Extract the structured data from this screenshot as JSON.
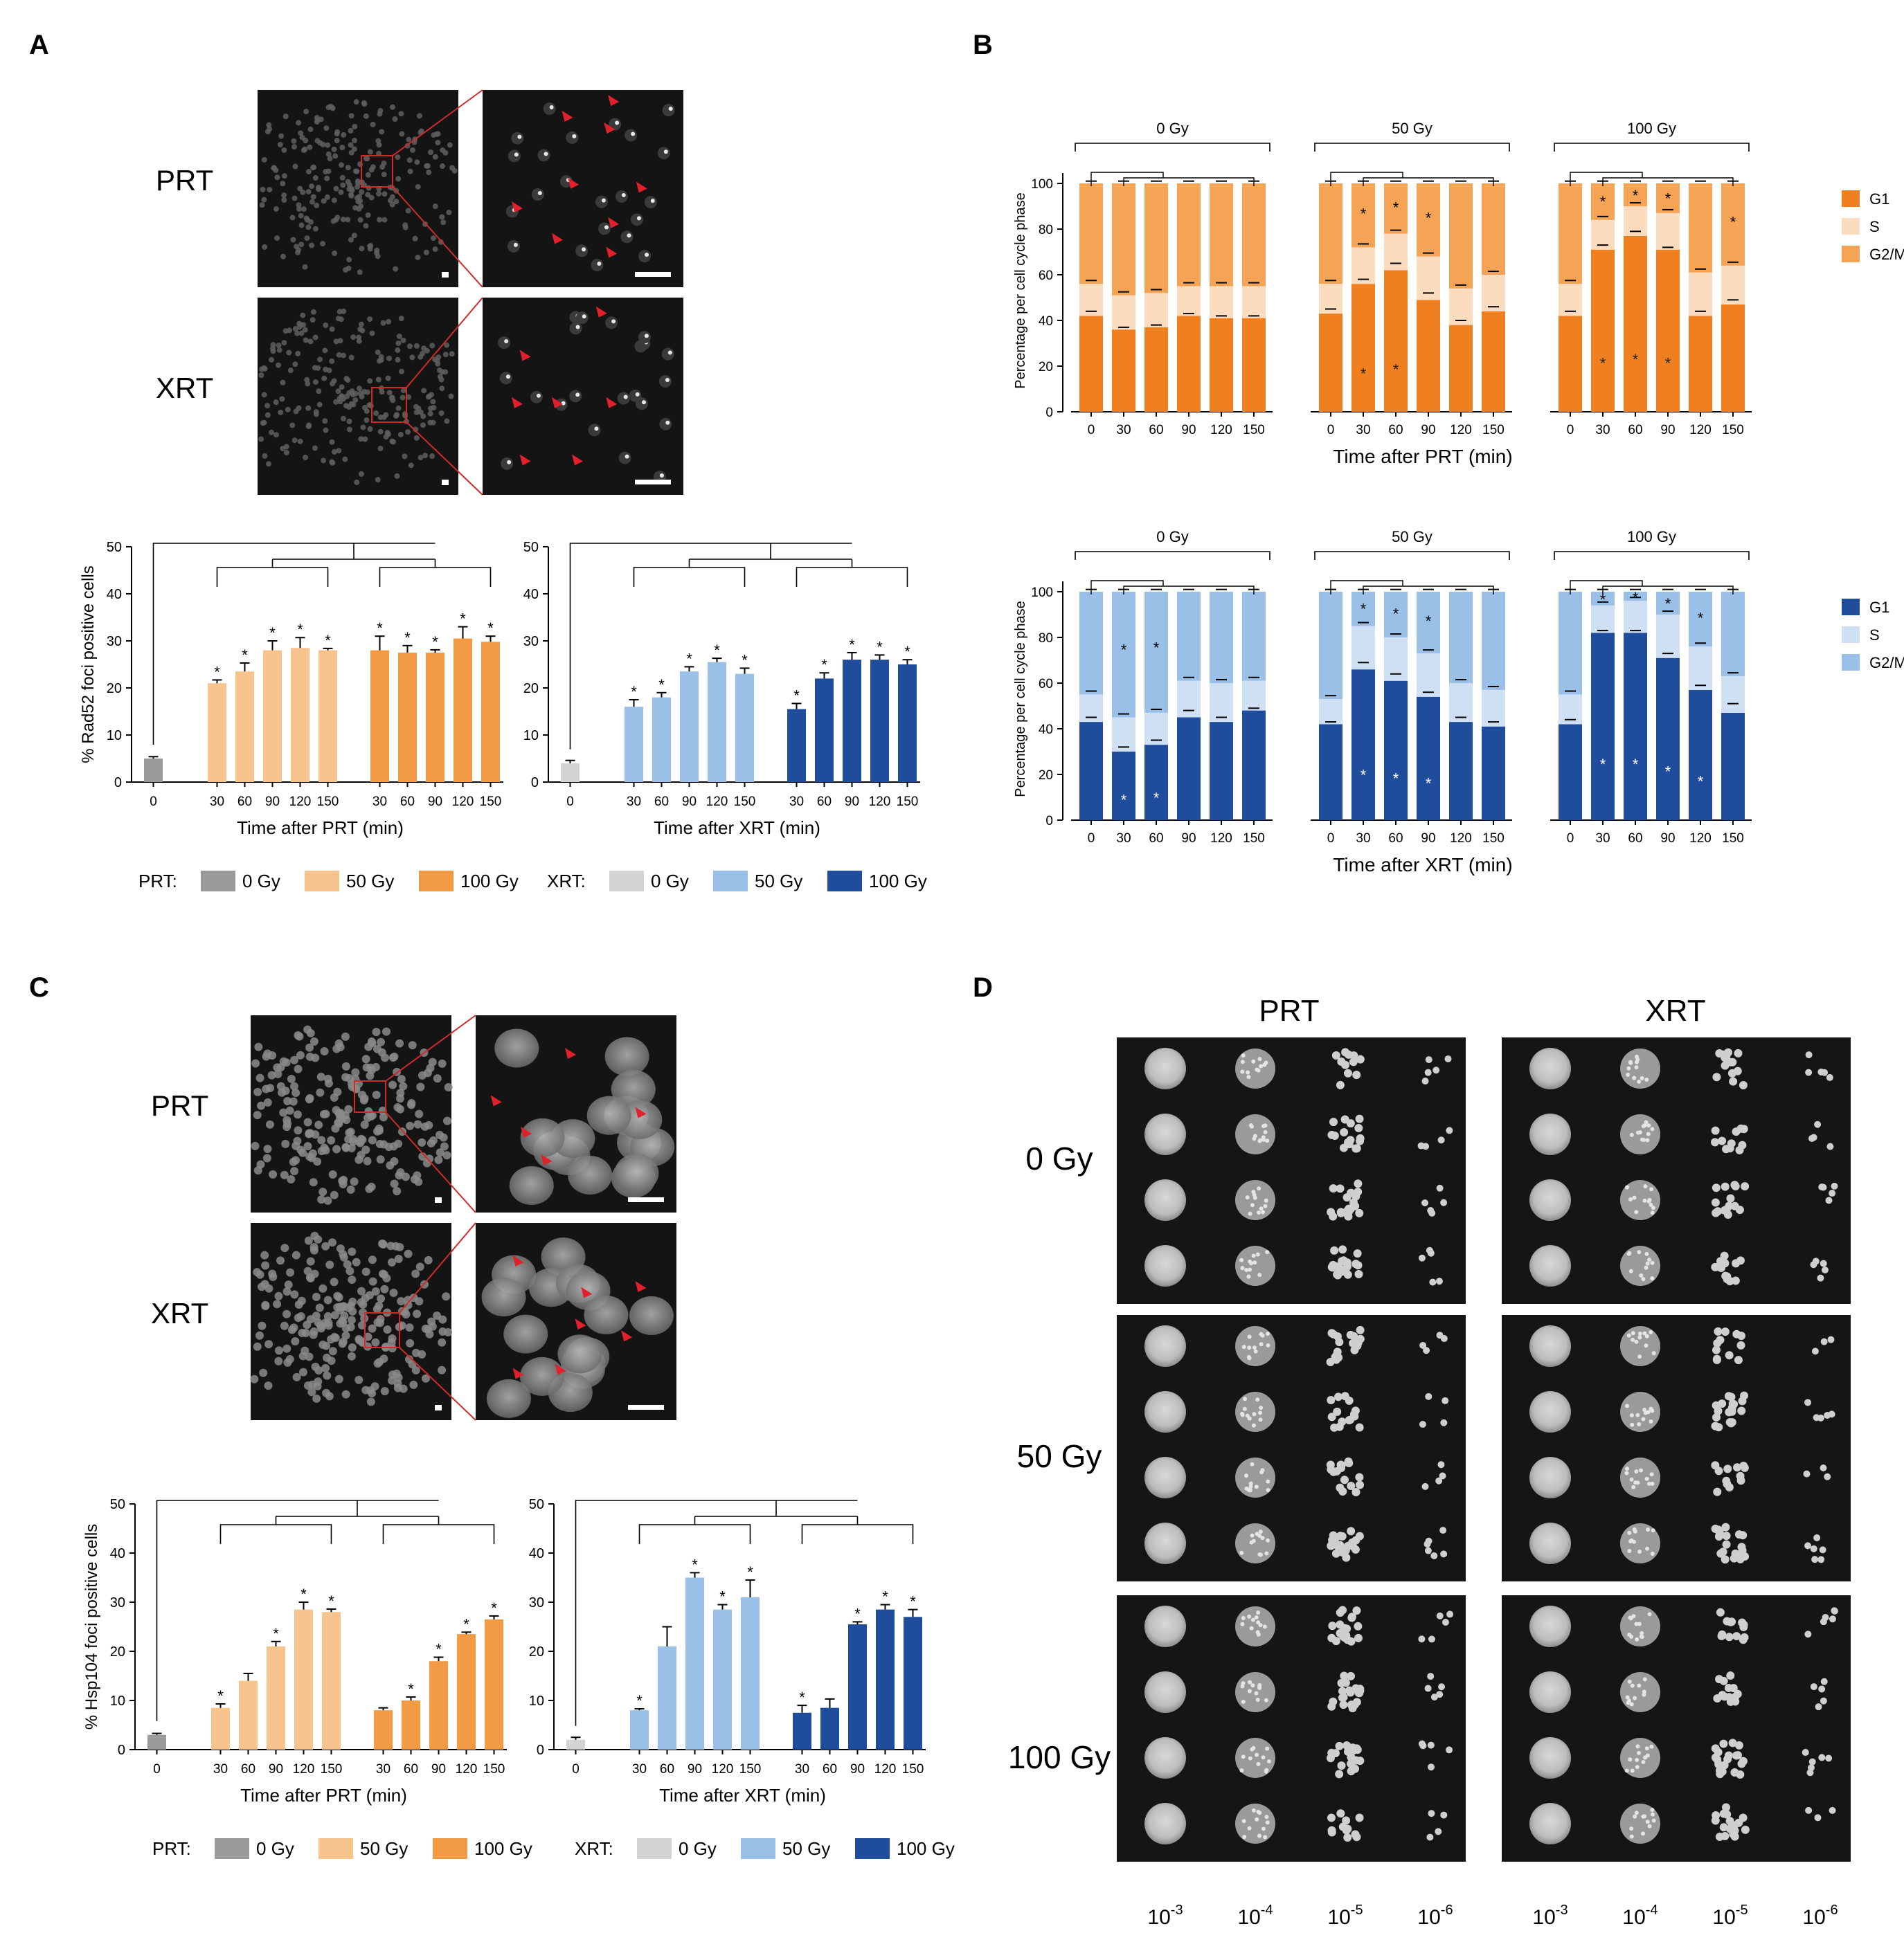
{
  "panels": {
    "A": "A",
    "B": "B",
    "C": "C",
    "D": "D"
  },
  "colors": {
    "prt0": "#9b9b9b",
    "prt50": "#f8c48e",
    "prt100": "#f39a45",
    "xrt0": "#d3d3d3",
    "xrt50": "#9ac0e8",
    "xrt100": "#1f4d9c",
    "g1_prt": "#f07f1f",
    "s_prt": "#fbdcbf",
    "g2_prt": "#f5a355",
    "g1_xrt": "#1f4d9c",
    "s_xrt": "#cfe0f5",
    "g2_xrt": "#9ac0e8",
    "arrow": "#e0202a"
  },
  "labels": {
    "prt": "PRT",
    "xrt": "XRT"
  },
  "legends": {
    "prt": {
      "title": "PRT:",
      "items": [
        "0 Gy",
        "50 Gy",
        "100 Gy"
      ]
    },
    "xrt": {
      "title": "XRT:",
      "items": [
        "0 Gy",
        "50 Gy",
        "100 Gy"
      ]
    },
    "phase": [
      "G1",
      "S",
      "G2/M"
    ]
  },
  "doses": [
    "0 Gy",
    "50 Gy",
    "100 Gy"
  ],
  "chart_data": [
    {
      "id": "A-prt",
      "type": "bar",
      "title": "",
      "ylabel": "% Rad52 foci positive cells",
      "xlabel": "Time after PRT (min)",
      "ylim": [
        0,
        50
      ],
      "yticks": [
        0,
        10,
        20,
        30,
        40,
        50
      ],
      "groups": [
        {
          "name": "0 Gy",
          "x": [
            "0"
          ],
          "values": [
            5
          ],
          "err": [
            0.4
          ]
        },
        {
          "name": "50 Gy",
          "x": [
            "30",
            "60",
            "90",
            "120",
            "150"
          ],
          "values": [
            21,
            23.5,
            28,
            28.5,
            28
          ],
          "err": [
            0.7,
            1.8,
            2,
            2.2,
            0.4
          ]
        },
        {
          "name": "100 Gy",
          "x": [
            "30",
            "60",
            "90",
            "120",
            "150"
          ],
          "values": [
            28,
            27.5,
            27.5,
            30.5,
            29.8
          ],
          "err": [
            3,
            1.5,
            0.6,
            2.5,
            1.2
          ]
        }
      ],
      "significance": [
        [
          false
        ],
        [
          true,
          true,
          true,
          true,
          true
        ],
        [
          true,
          true,
          true,
          true,
          true
        ]
      ]
    },
    {
      "id": "A-xrt",
      "type": "bar",
      "title": "",
      "ylabel": "",
      "xlabel": "Time after XRT (min)",
      "ylim": [
        0,
        50
      ],
      "yticks": [
        0,
        10,
        20,
        30,
        40,
        50
      ],
      "groups": [
        {
          "name": "0 Gy",
          "x": [
            "0"
          ],
          "values": [
            4
          ],
          "err": [
            0.6
          ]
        },
        {
          "name": "50 Gy",
          "x": [
            "30",
            "60",
            "90",
            "120",
            "150"
          ],
          "values": [
            16,
            18,
            23.5,
            25.5,
            23
          ],
          "err": [
            1.5,
            1,
            1,
            0.8,
            1.2
          ]
        },
        {
          "name": "100 Gy",
          "x": [
            "30",
            "60",
            "90",
            "120",
            "150"
          ],
          "values": [
            15.5,
            22,
            26,
            26,
            25
          ],
          "err": [
            1.2,
            1.2,
            1.5,
            1,
            1
          ]
        }
      ],
      "significance": [
        [
          false
        ],
        [
          true,
          true,
          true,
          true,
          true
        ],
        [
          true,
          true,
          true,
          true,
          true
        ]
      ]
    },
    {
      "id": "B-prt",
      "type": "stacked-bar",
      "ylabel": "Percentage per cell cycle phase",
      "xlabel": "Time after PRT (min)",
      "ylim": [
        0,
        100
      ],
      "yticks": [
        0,
        20,
        40,
        60,
        80,
        100
      ],
      "series": [
        "G1",
        "S",
        "G2/M"
      ],
      "groups": [
        {
          "name": "0 Gy",
          "x": [
            "0",
            "30",
            "60",
            "90",
            "120",
            "150"
          ],
          "G1": [
            42,
            36,
            37,
            42,
            41,
            41
          ],
          "S": [
            14,
            15,
            15,
            13,
            14,
            14
          ]
        },
        {
          "name": "50 Gy",
          "x": [
            "0",
            "30",
            "60",
            "90",
            "120",
            "150"
          ],
          "G1": [
            43,
            56,
            62,
            49,
            38,
            44
          ],
          "S": [
            13,
            16,
            16,
            19,
            16,
            16
          ]
        },
        {
          "name": "100 Gy",
          "x": [
            "0",
            "30",
            "60",
            "90",
            "120",
            "150"
          ],
          "G1": [
            42,
            71,
            77,
            71,
            42,
            47
          ],
          "S": [
            14,
            13,
            13,
            16,
            19,
            17
          ]
        }
      ],
      "g1_err": [
        [
          2,
          1,
          1,
          1,
          1,
          1
        ],
        [
          2,
          2,
          3,
          3,
          2,
          2
        ],
        [
          2,
          2,
          2,
          1,
          2,
          2
        ]
      ],
      "g1_star": [
        [
          false,
          false,
          false,
          false,
          false,
          false
        ],
        [
          false,
          true,
          true,
          false,
          false,
          false
        ],
        [
          false,
          true,
          true,
          true,
          false,
          false
        ]
      ],
      "top_star": [
        [
          false,
          false,
          false,
          false,
          false,
          false
        ],
        [
          false,
          true,
          true,
          true,
          false,
          false
        ],
        [
          false,
          true,
          true,
          true,
          false,
          true
        ]
      ]
    },
    {
      "id": "B-xrt",
      "type": "stacked-bar",
      "ylabel": "Percentage per cell cycle phase",
      "xlabel": "Time after XRT (min)",
      "ylim": [
        0,
        100
      ],
      "yticks": [
        0,
        20,
        40,
        60,
        80,
        100
      ],
      "series": [
        "G1",
        "S",
        "G2/M"
      ],
      "groups": [
        {
          "name": "0 Gy",
          "x": [
            "0",
            "30",
            "60",
            "90",
            "120",
            "150"
          ],
          "G1": [
            43,
            30,
            33,
            45,
            43,
            48
          ],
          "S": [
            12,
            15,
            14,
            16,
            17,
            13
          ]
        },
        {
          "name": "50 Gy",
          "x": [
            "0",
            "30",
            "60",
            "90",
            "120",
            "150"
          ],
          "G1": [
            42,
            66,
            61,
            54,
            43,
            41
          ],
          "S": [
            11,
            19,
            19,
            19,
            17,
            16
          ]
        },
        {
          "name": "100 Gy",
          "x": [
            "0",
            "30",
            "60",
            "90",
            "120",
            "150"
          ],
          "G1": [
            42,
            82,
            82,
            71,
            57,
            47
          ],
          "S": [
            13,
            12,
            14,
            19,
            19,
            16
          ]
        }
      ],
      "g1_err": [
        [
          2,
          2,
          2,
          3,
          2,
          1
        ],
        [
          1,
          3,
          3,
          2,
          2,
          2
        ],
        [
          2,
          1,
          1,
          2,
          2,
          4
        ]
      ],
      "g1_star": [
        [
          false,
          true,
          true,
          false,
          false,
          false
        ],
        [
          false,
          true,
          true,
          true,
          false,
          false
        ],
        [
          false,
          true,
          true,
          true,
          true,
          false
        ]
      ],
      "top_star": [
        [
          false,
          true,
          true,
          false,
          false,
          false
        ],
        [
          false,
          true,
          true,
          true,
          false,
          false
        ],
        [
          false,
          true,
          true,
          true,
          true,
          false
        ]
      ]
    },
    {
      "id": "C-prt",
      "type": "bar",
      "title": "",
      "ylabel": "% Hsp104 foci positive cells",
      "xlabel": "Time after PRT (min)",
      "ylim": [
        0,
        50
      ],
      "yticks": [
        0,
        10,
        20,
        30,
        40,
        50
      ],
      "groups": [
        {
          "name": "0 Gy",
          "x": [
            "0"
          ],
          "values": [
            3
          ],
          "err": [
            0.3
          ]
        },
        {
          "name": "50 Gy",
          "x": [
            "30",
            "60",
            "90",
            "120",
            "150"
          ],
          "values": [
            8.5,
            14,
            21,
            28.5,
            28
          ],
          "err": [
            0.8,
            1.5,
            1,
            1.5,
            0.6
          ]
        },
        {
          "name": "100 Gy",
          "x": [
            "30",
            "60",
            "90",
            "120",
            "150"
          ],
          "values": [
            8,
            10,
            18,
            23.5,
            26.5
          ],
          "err": [
            0.5,
            0.7,
            0.8,
            0.4,
            0.7
          ]
        }
      ],
      "significance": [
        [
          false
        ],
        [
          true,
          false,
          true,
          true,
          true
        ],
        [
          false,
          true,
          true,
          true,
          true
        ]
      ]
    },
    {
      "id": "C-xrt",
      "type": "bar",
      "title": "",
      "ylabel": "",
      "xlabel": "Time after XRT (min)",
      "ylim": [
        0,
        50
      ],
      "yticks": [
        0,
        10,
        20,
        30,
        40,
        50
      ],
      "groups": [
        {
          "name": "0 Gy",
          "x": [
            "0"
          ],
          "values": [
            2
          ],
          "err": [
            0.5
          ]
        },
        {
          "name": "50 Gy",
          "x": [
            "30",
            "60",
            "90",
            "120",
            "150"
          ],
          "values": [
            8,
            21,
            35,
            28.5,
            31
          ],
          "err": [
            0.3,
            4,
            1,
            1,
            3.5
          ]
        },
        {
          "name": "100 Gy",
          "x": [
            "30",
            "60",
            "90",
            "120",
            "150"
          ],
          "values": [
            7.5,
            8.5,
            25.5,
            28.5,
            27
          ],
          "err": [
            1.5,
            1.8,
            0.5,
            1,
            1.5
          ]
        }
      ],
      "significance": [
        [
          false
        ],
        [
          true,
          false,
          true,
          true,
          true
        ],
        [
          true,
          false,
          true,
          true,
          true
        ]
      ]
    }
  ],
  "spot_assay": {
    "columns": [
      "PRT",
      "XRT"
    ],
    "rows": [
      "0 Gy",
      "50 Gy",
      "100 Gy"
    ],
    "dilutions": [
      {
        "base": "10",
        "exp": "-3"
      },
      {
        "base": "10",
        "exp": "-4"
      },
      {
        "base": "10",
        "exp": "-5"
      },
      {
        "base": "10",
        "exp": "-6"
      }
    ]
  }
}
